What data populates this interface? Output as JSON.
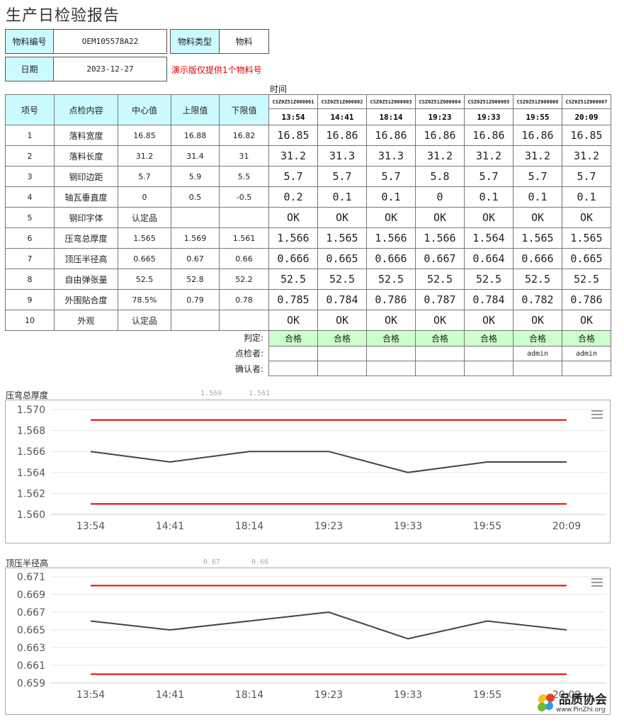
{
  "page_title": "生产日检验报告",
  "header": {
    "material_no_label": "物料编号",
    "material_no_value": "OEM105578A22",
    "material_type_label": "物料类型",
    "material_type_value": "物料",
    "date_label": "日期",
    "date_value": "2023-12-27",
    "demo_note": "演示版仅提供1个物料号"
  },
  "time_label": "时间",
  "columns": [
    "项号",
    "点检内容",
    "中心值",
    "上限值",
    "下限值"
  ],
  "items": [
    {
      "no": "1",
      "name": "落料宽度",
      "center": "16.85",
      "upper": "16.88",
      "lower": "16.82"
    },
    {
      "no": "2",
      "name": "落料长度",
      "center": "31.2",
      "upper": "31.4",
      "lower": "31"
    },
    {
      "no": "3",
      "name": "钢印边距",
      "center": "5.7",
      "upper": "5.9",
      "lower": "5.5"
    },
    {
      "no": "4",
      "name": "轴瓦垂直度",
      "center": "0",
      "upper": "0.5",
      "lower": "-0.5"
    },
    {
      "no": "5",
      "name": "钢印字体",
      "center": "认定品",
      "upper": "",
      "lower": ""
    },
    {
      "no": "6",
      "name": "压弯总厚度",
      "center": "1.565",
      "upper": "1.569",
      "lower": "1.561"
    },
    {
      "no": "7",
      "name": "顶压半径高",
      "center": "0.665",
      "upper": "0.67",
      "lower": "0.66"
    },
    {
      "no": "8",
      "name": "自由弹张量",
      "center": "52.5",
      "upper": "52.8",
      "lower": "52.2"
    },
    {
      "no": "9",
      "name": "外围贴合度",
      "center": "78.5%",
      "upper": "0.79",
      "lower": "0.78"
    },
    {
      "no": "10",
      "name": "外观",
      "center": "认定品",
      "upper": "",
      "lower": ""
    }
  ],
  "samples": [
    {
      "id": "CSZ0Z51Z000001",
      "time": "13:54",
      "values": [
        "16.85",
        "31.2",
        "5.7",
        "0.2",
        "OK",
        "1.566",
        "0.666",
        "52.5",
        "0.785",
        "OK"
      ],
      "verdict": "合格",
      "inspector": "",
      "confirmer": ""
    },
    {
      "id": "CSZ0Z51Z000002",
      "time": "14:41",
      "values": [
        "16.86",
        "31.3",
        "5.7",
        "0.1",
        "OK",
        "1.565",
        "0.665",
        "52.5",
        "0.784",
        "OK"
      ],
      "verdict": "合格",
      "inspector": "",
      "confirmer": ""
    },
    {
      "id": "CSZ0Z51Z000003",
      "time": "18:14",
      "values": [
        "16.86",
        "31.3",
        "5.7",
        "0.1",
        "OK",
        "1.566",
        "0.666",
        "52.5",
        "0.786",
        "OK"
      ],
      "verdict": "合格",
      "inspector": "",
      "confirmer": ""
    },
    {
      "id": "CSZ0Z51Z000004",
      "time": "19:23",
      "values": [
        "16.86",
        "31.2",
        "5.8",
        "0",
        "OK",
        "1.566",
        "0.667",
        "52.5",
        "0.787",
        "OK"
      ],
      "verdict": "合格",
      "inspector": "",
      "confirmer": ""
    },
    {
      "id": "CSZ0Z51Z000005",
      "time": "19:33",
      "values": [
        "16.86",
        "31.2",
        "5.7",
        "0.1",
        "OK",
        "1.564",
        "0.664",
        "52.5",
        "0.784",
        "OK"
      ],
      "verdict": "合格",
      "inspector": "",
      "confirmer": ""
    },
    {
      "id": "CSZ0Z51Z000006",
      "time": "19:55",
      "values": [
        "16.86",
        "31.2",
        "5.7",
        "0.1",
        "OK",
        "1.565",
        "0.666",
        "52.5",
        "0.782",
        "OK"
      ],
      "verdict": "合格",
      "inspector": "admin",
      "confirmer": ""
    },
    {
      "id": "CSZ0Z51Z000007",
      "time": "20:09",
      "values": [
        "16.85",
        "31.2",
        "5.7",
        "0.1",
        "OK",
        "1.565",
        "0.665",
        "52.5",
        "0.786",
        "OK"
      ],
      "verdict": "合格",
      "inspector": "admin",
      "confirmer": ""
    }
  ],
  "row_labels": {
    "verdict": "判定:",
    "inspector": "点检者:",
    "confirmer": "确认者:"
  },
  "colors": {
    "header_cyan": "#ccfbff",
    "pass_green": "#ccffcc",
    "limit_red": "#e60000",
    "series_gray": "#444444",
    "note_red": "#e00000"
  },
  "chart_data": [
    {
      "type": "line",
      "title": "压弯总厚度",
      "limit_tags": [
        "1.569",
        "1.561"
      ],
      "categories": [
        "13:54",
        "14:41",
        "18:14",
        "19:23",
        "19:33",
        "19:55",
        "20:09"
      ],
      "series": [
        {
          "values": [
            1.566,
            1.565,
            1.566,
            1.566,
            1.564,
            1.565,
            1.565
          ]
        }
      ],
      "upper_limit": 1.569,
      "lower_limit": 1.561,
      "yticks": [
        "1.560",
        "1.562",
        "1.564",
        "1.566",
        "1.568",
        "1.570"
      ],
      "ylim": [
        1.56,
        1.57
      ],
      "grid": true,
      "menu_icon": "hamburger-icon"
    },
    {
      "type": "line",
      "title": "顶压半径高",
      "limit_tags": [
        "0.67",
        "0.66"
      ],
      "categories": [
        "13:54",
        "14:41",
        "18:14",
        "19:23",
        "19:33",
        "19:55",
        "20:09"
      ],
      "series": [
        {
          "values": [
            0.666,
            0.665,
            0.666,
            0.667,
            0.664,
            0.666,
            0.665
          ]
        }
      ],
      "upper_limit": 0.67,
      "lower_limit": 0.66,
      "yticks": [
        "0.659",
        "0.661",
        "0.663",
        "0.665",
        "0.667",
        "0.669",
        "0.671"
      ],
      "ylim": [
        0.659,
        0.671
      ],
      "grid": true,
      "menu_icon": "hamburger-icon"
    }
  ],
  "watermark": {
    "text": "品质协会",
    "url": "www.PinZhi.org"
  }
}
